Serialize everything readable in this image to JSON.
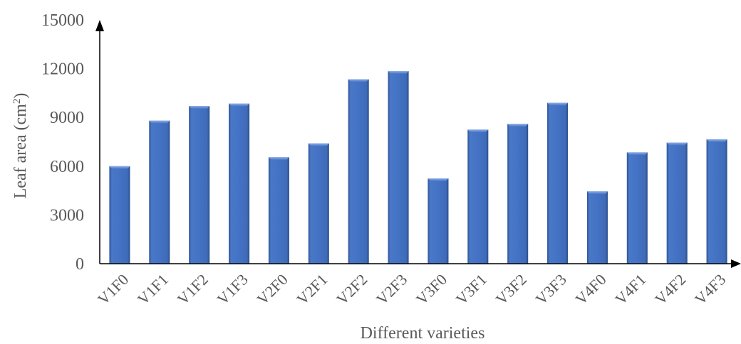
{
  "chart_data": {
    "type": "bar",
    "title": "",
    "xlabel": "Different varieties",
    "ylabel_main": "Leaf area (cm",
    "ylabel_sup": "2",
    "ylabel_end": ")",
    "categories": [
      "V1F0",
      "V1F1",
      "V1F2",
      "V1F3",
      "V2F0",
      "V2F1",
      "V2F2",
      "V2F3",
      "V3F0",
      "V3F1",
      "V3F2",
      "V3F3",
      "V4F0",
      "V4F1",
      "V4F2",
      "V4F3"
    ],
    "values": [
      6000,
      8800,
      9700,
      9850,
      6550,
      7400,
      11350,
      11850,
      5250,
      8250,
      8600,
      9900,
      4450,
      6850,
      7450,
      7650
    ],
    "ylim": [
      0,
      15000
    ],
    "yticks": [
      "0",
      "3000",
      "6000",
      "9000",
      "12000",
      "15000"
    ],
    "grid": false,
    "legend": "none",
    "colors": {
      "bar": "#4472c4",
      "bar_dark": "#2f5597",
      "bar_light": "#6f94d6",
      "axis": "#000000",
      "text": "#595959"
    }
  }
}
